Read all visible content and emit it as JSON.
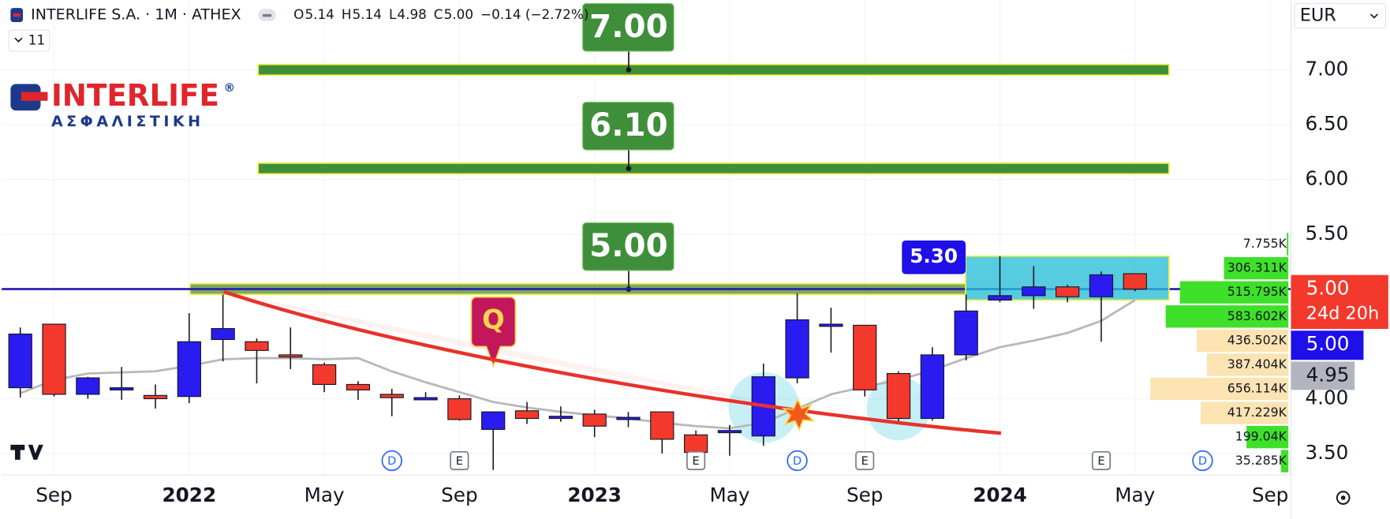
{
  "header": {
    "symbol": "INTERLIFE S.A. · 1M · ATHEX",
    "ohlc": [
      {
        "key": "O",
        "value": "5.14"
      },
      {
        "key": "H",
        "value": "5.14"
      },
      {
        "key": "L",
        "value": "4.98"
      },
      {
        "key": "C",
        "value": "5.00"
      }
    ],
    "change": "−0.14 (−2.72%)",
    "indicators": "11",
    "currency": "EUR"
  },
  "logo": {
    "name": "INTERLIFE",
    "mark": "®",
    "subtitle": "ΑΣΦΑΛΙΣΤΙΚΗ"
  },
  "chart_data": {
    "type": "candlestick",
    "categories": [
      null,
      "Sep",
      null,
      null,
      null,
      "2022",
      null,
      null,
      null,
      "May",
      null,
      null,
      null,
      "Sep",
      null,
      null,
      null,
      "2023",
      null,
      null,
      null,
      "May",
      null,
      null,
      null,
      "Sep",
      null,
      null,
      null,
      "2024",
      null,
      null,
      null,
      "May",
      null,
      null,
      null,
      "Sep"
    ],
    "open": [
      4.1,
      4.68,
      4.04,
      4.1,
      4.03,
      4.02,
      4.54,
      4.52,
      4.4,
      4.31,
      4.13,
      4.04,
      4.01,
      4.0,
      3.72,
      3.89,
      3.83,
      3.86,
      3.81,
      3.88,
      3.67,
      3.69,
      3.66,
      4.19,
      4.67,
      4.67,
      4.23,
      3.82,
      4.4,
      4.9,
      4.94,
      5.02,
      4.93,
      5.14,
      null,
      null,
      null,
      null
    ],
    "high": [
      4.65,
      4.68,
      4.2,
      4.29,
      4.13,
      4.78,
      4.95,
      4.55,
      4.65,
      4.33,
      4.16,
      4.09,
      4.06,
      4.03,
      3.88,
      3.97,
      3.93,
      3.9,
      3.88,
      3.88,
      3.71,
      3.76,
      4.32,
      4.96,
      4.83,
      4.67,
      4.25,
      4.47,
      4.95,
      5.3,
      5.21,
      5.04,
      5.16,
      5.14,
      null,
      null,
      null,
      null
    ],
    "low": [
      4.01,
      4.02,
      4.0,
      3.99,
      3.91,
      3.96,
      4.34,
      4.14,
      4.27,
      4.06,
      3.99,
      3.84,
      3.99,
      3.8,
      3.35,
      3.77,
      3.79,
      3.65,
      3.74,
      3.5,
      3.47,
      3.48,
      3.57,
      4.14,
      4.42,
      4.02,
      3.79,
      3.8,
      4.35,
      4.88,
      4.82,
      4.88,
      4.52,
      4.98,
      null,
      null,
      null,
      null
    ],
    "close": [
      4.59,
      4.04,
      4.19,
      4.1,
      4.0,
      4.52,
      4.64,
      4.44,
      4.39,
      4.13,
      4.08,
      4.01,
      4.01,
      3.81,
      3.88,
      3.82,
      3.84,
      3.75,
      3.83,
      3.63,
      3.51,
      3.71,
      4.2,
      4.72,
      4.68,
      4.08,
      3.82,
      4.4,
      4.8,
      4.94,
      5.02,
      4.93,
      5.13,
      5.0,
      null,
      null,
      null,
      null
    ],
    "up_color": "#2a1cf0",
    "down_color": "#f2392c",
    "ma": {
      "color": "#b8b8b8",
      "values": [
        4.05,
        4.17,
        4.23,
        4.24,
        4.25,
        4.3,
        4.36,
        4.37,
        4.37,
        4.36,
        4.37,
        4.25,
        4.15,
        4.06,
        3.97,
        3.92,
        3.88,
        3.85,
        3.82,
        3.78,
        3.75,
        3.73,
        3.78,
        3.91,
        4.04,
        4.11,
        4.17,
        4.26,
        4.37,
        4.47,
        4.53,
        4.6,
        4.71,
        4.9,
        null,
        null,
        null,
        null
      ]
    },
    "ylim": [
      3.306,
      7.637
    ],
    "yticks": [
      {
        "value": 3.5,
        "label": "3.50"
      },
      {
        "value": 4,
        "label": "4.00"
      },
      {
        "value": 5.5,
        "label": "5.50"
      },
      {
        "value": 6,
        "label": "6.00"
      },
      {
        "value": 6.5,
        "label": "6.50"
      },
      {
        "value": 7,
        "label": "7.00"
      }
    ],
    "grid": true,
    "levels": [
      {
        "value": 7,
        "label": "7.00"
      },
      {
        "value": 6.1,
        "label": "6.10"
      },
      {
        "value": 5,
        "label": "5.00"
      }
    ],
    "zone": {
      "top": 5.3,
      "bottom": 4.9,
      "label": "5.30"
    },
    "volume_profile": {
      "bins": [
        5.52,
        5.3,
        5.08,
        4.86,
        4.64,
        4.42,
        4.2,
        3.98,
        3.76,
        3.54,
        3.32
      ],
      "values": [
        7755,
        306311,
        515795,
        583602,
        436502,
        387404,
        656114,
        417229,
        199040,
        35285
      ],
      "value_labels": [
        "7.755K",
        "306.311K",
        "515.795K",
        "583.602K",
        "436.502K",
        "387.404K",
        "656.114K",
        "417.229K",
        "199.04K",
        "35.285K"
      ],
      "colors": [
        "#3fe02a",
        "#3fe02a",
        "#3fe02a",
        "#3fe02a",
        "#fbe3b2",
        "#fbe3b2",
        "#fbe3b2",
        "#fbe3b2",
        "#3fe02a",
        "#3fe02a"
      ]
    },
    "price_labels": [
      {
        "text": "5.00",
        "sub": "24d 20h",
        "color": "#f2392c"
      },
      {
        "text": "5.00",
        "color": "#1f0fe8"
      },
      {
        "text": "4.95",
        "color": "#b2b5be"
      }
    ],
    "events": [
      {
        "label": "D",
        "at": 11
      },
      {
        "label": "E",
        "at": 13
      },
      {
        "label": "E",
        "at": 20
      },
      {
        "label": "D",
        "at": 23
      },
      {
        "label": "E",
        "at": 25
      },
      {
        "label": "E",
        "at": 32
      },
      {
        "label": "D",
        "at": 35
      }
    ],
    "annotation": "Q"
  }
}
